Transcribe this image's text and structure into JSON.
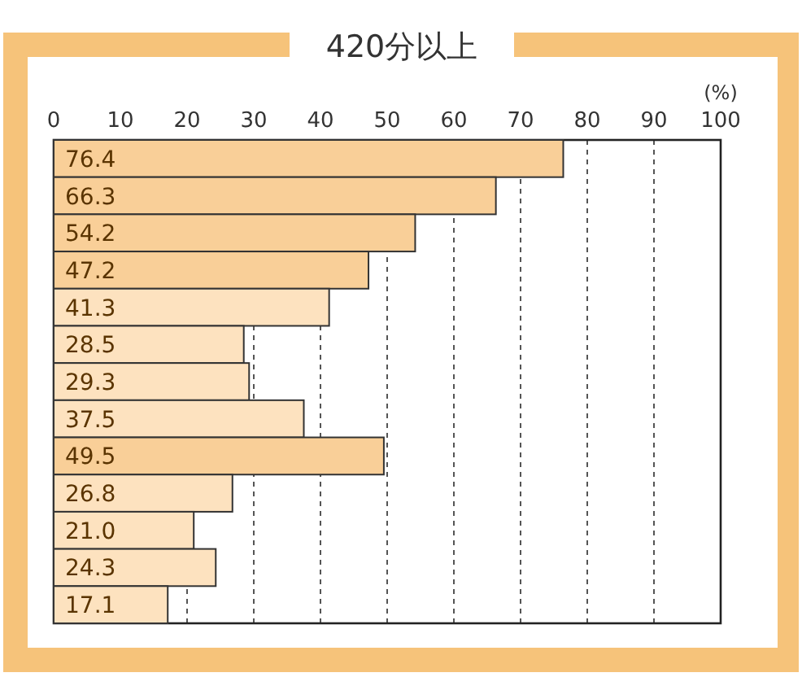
{
  "chart_data": {
    "type": "bar",
    "orientation": "horizontal",
    "title": "420分以上",
    "xlabel": "(%)",
    "categories": [
      null,
      null,
      null,
      null,
      null,
      null,
      null,
      null,
      null,
      null,
      null,
      null,
      null
    ],
    "values": [
      76.4,
      66.3,
      54.2,
      47.2,
      41.3,
      28.5,
      29.3,
      37.5,
      49.5,
      26.8,
      21.0,
      24.3,
      17.1
    ],
    "value_labels": [
      "76.4",
      "66.3",
      "54.2",
      "47.2",
      "41.3",
      "28.5",
      "29.3",
      "37.5",
      "49.5",
      "26.8",
      "21.0",
      "24.3",
      "17.1"
    ],
    "colors": [
      "#f9cf98",
      "#f9cf98",
      "#f9cf98",
      "#f9cf98",
      "#fde2bf",
      "#fde2bf",
      "#fde2bf",
      "#fde2bf",
      "#f9cf98",
      "#fde2bf",
      "#fde2bf",
      "#fde2bf",
      "#fde2bf"
    ],
    "xlim": [
      0,
      100
    ],
    "xticks": [
      0,
      10,
      20,
      30,
      40,
      50,
      60,
      70,
      80,
      90,
      100
    ],
    "grid": "x"
  }
}
